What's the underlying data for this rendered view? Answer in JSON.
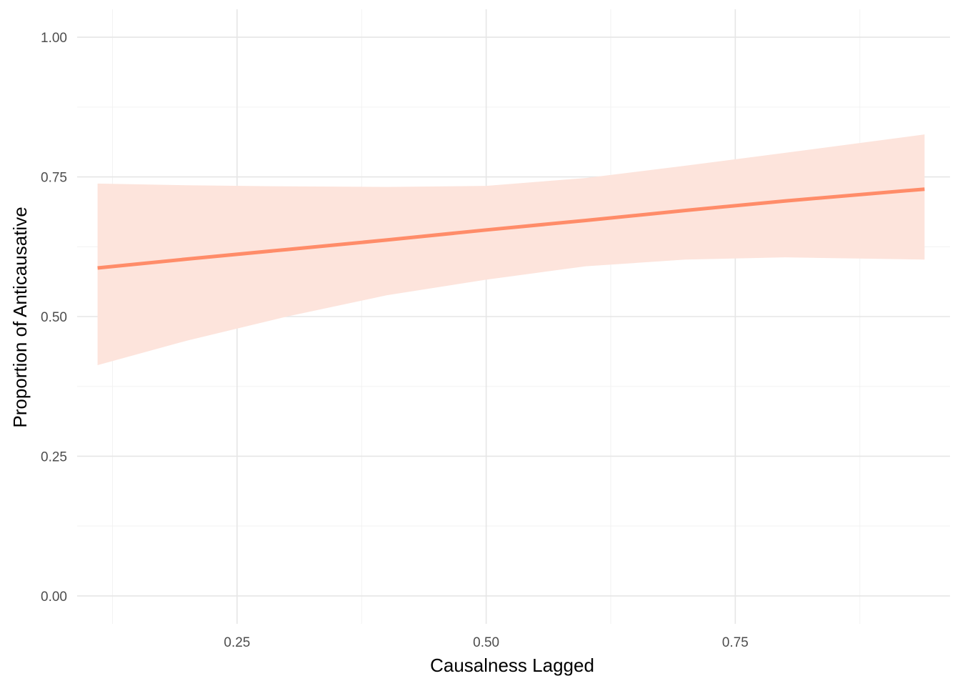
{
  "chart_data": {
    "type": "line",
    "xlabel": "Causalness Lagged",
    "ylabel": "Proportion of Anticausative",
    "xlim": [
      0.0895,
      0.9655
    ],
    "ylim": [
      -0.05,
      1.05
    ],
    "x_ticks": [
      0.25,
      0.5,
      0.75
    ],
    "x_tick_labels": [
      "0.25",
      "0.50",
      "0.75"
    ],
    "x_minor_ticks": [
      0.125,
      0.375,
      0.625,
      0.875
    ],
    "y_ticks": [
      0.0,
      0.25,
      0.5,
      0.75,
      1.0
    ],
    "y_tick_labels": [
      "0.00",
      "0.25",
      "0.50",
      "0.75",
      "1.00"
    ],
    "y_minor_ticks": [
      0.125,
      0.375,
      0.625,
      0.875
    ],
    "grid": true,
    "series": [
      {
        "color": "#FF8C69",
        "ribbon_color": "#FDE4DC",
        "x": [
          0.11,
          0.2,
          0.3,
          0.4,
          0.5,
          0.6,
          0.7,
          0.8,
          0.94
        ],
        "y": [
          0.587,
          0.603,
          0.62,
          0.637,
          0.655,
          0.672,
          0.69,
          0.707,
          0.728
        ],
        "lower": [
          0.413,
          0.457,
          0.5,
          0.538,
          0.566,
          0.59,
          0.602,
          0.606,
          0.602
        ],
        "upper": [
          0.738,
          0.735,
          0.733,
          0.732,
          0.734,
          0.748,
          0.77,
          0.793,
          0.826
        ]
      }
    ]
  }
}
